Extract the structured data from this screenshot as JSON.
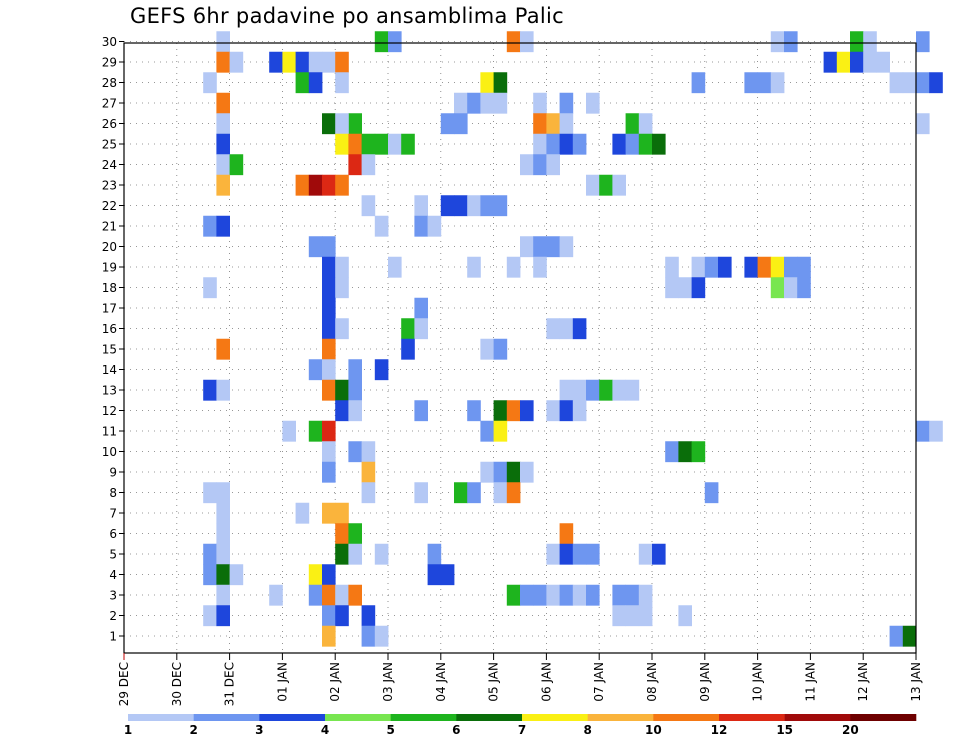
{
  "chart_data": {
    "type": "heatmap",
    "title": "GEFS 6hr padavine po ansamblima Palic",
    "x_tick_labels": [
      "29 DEC",
      "30 DEC",
      "31 DEC",
      "01 JAN",
      "02 JAN",
      "03 JAN",
      "04 JAN",
      "05 JAN",
      "06 JAN",
      "07 JAN",
      "08 JAN",
      "09 JAN",
      "10 JAN",
      "11 JAN",
      "12 JAN",
      "13 JAN"
    ],
    "y_tick_labels": [
      "1",
      "2",
      "3",
      "4",
      "5",
      "6",
      "7",
      "8",
      "9",
      "10",
      "11",
      "12",
      "13",
      "14",
      "15",
      "16",
      "17",
      "18",
      "19",
      "20",
      "21",
      "22",
      "23",
      "24",
      "25",
      "26",
      "27",
      "28",
      "29",
      "30"
    ],
    "x_slots_per_day": 4,
    "colorbar": {
      "labels": [
        "1",
        "2",
        "3",
        "4",
        "5",
        "6",
        "7",
        "8",
        "10",
        "12",
        "15",
        "20"
      ],
      "colors": [
        "#b4c8f5",
        "#6e96f0",
        "#1e46dc",
        "#78e650",
        "#1eb41e",
        "#0a6e0a",
        "#faf014",
        "#fab43c",
        "#f57814",
        "#dc2814",
        "#a00a0a",
        "#6e0000"
      ]
    },
    "cells": [
      [
        30,
        7,
        1
      ],
      [
        30,
        19,
        5
      ],
      [
        30,
        20,
        2
      ],
      [
        30,
        29,
        11
      ],
      [
        30,
        30,
        1
      ],
      [
        30,
        49,
        1
      ],
      [
        30,
        50,
        2
      ],
      [
        30,
        55,
        5
      ],
      [
        30,
        56,
        1
      ],
      [
        30,
        60,
        2
      ],
      [
        29,
        7,
        11
      ],
      [
        29,
        8,
        1
      ],
      [
        29,
        11,
        3
      ],
      [
        29,
        12,
        7
      ],
      [
        29,
        13,
        3
      ],
      [
        29,
        14,
        1
      ],
      [
        29,
        15,
        1
      ],
      [
        29,
        16,
        10
      ],
      [
        29,
        53,
        3
      ],
      [
        29,
        54,
        7
      ],
      [
        29,
        55,
        3
      ],
      [
        29,
        56,
        1
      ],
      [
        29,
        57,
        1
      ],
      [
        28,
        6,
        1
      ],
      [
        28,
        13,
        5
      ],
      [
        28,
        14,
        3
      ],
      [
        28,
        16,
        1
      ],
      [
        28,
        27,
        7
      ],
      [
        28,
        28,
        6
      ],
      [
        28,
        43,
        2
      ],
      [
        28,
        47,
        2
      ],
      [
        28,
        48,
        2
      ],
      [
        28,
        49,
        1
      ],
      [
        28,
        58,
        1
      ],
      [
        28,
        59,
        1
      ],
      [
        28,
        60,
        2
      ],
      [
        28,
        61,
        3
      ],
      [
        27,
        7,
        11
      ],
      [
        27,
        25,
        1
      ],
      [
        27,
        26,
        2
      ],
      [
        27,
        27,
        1
      ],
      [
        27,
        28,
        1
      ],
      [
        27,
        31,
        1
      ],
      [
        27,
        33,
        2
      ],
      [
        27,
        35,
        1
      ],
      [
        26,
        7,
        1
      ],
      [
        26,
        17,
        5
      ],
      [
        26,
        15,
        6
      ],
      [
        26,
        16,
        1
      ],
      [
        26,
        24,
        2
      ],
      [
        26,
        25,
        2
      ],
      [
        26,
        31,
        10
      ],
      [
        26,
        32,
        8
      ],
      [
        26,
        33,
        1
      ],
      [
        26,
        38,
        5
      ],
      [
        26,
        39,
        1
      ],
      [
        26,
        60,
        1
      ],
      [
        25,
        7,
        3
      ],
      [
        25,
        16,
        7
      ],
      [
        25,
        17,
        10
      ],
      [
        25,
        18,
        5
      ],
      [
        25,
        19,
        5
      ],
      [
        25,
        20,
        1
      ],
      [
        25,
        21,
        5
      ],
      [
        25,
        31,
        1
      ],
      [
        25,
        32,
        2
      ],
      [
        25,
        33,
        3
      ],
      [
        25,
        34,
        2
      ],
      [
        25,
        37,
        3
      ],
      [
        25,
        38,
        2
      ],
      [
        25,
        39,
        5
      ],
      [
        25,
        40,
        6
      ],
      [
        24,
        7,
        1
      ],
      [
        24,
        8,
        5
      ],
      [
        24,
        17,
        13
      ],
      [
        24,
        18,
        1
      ],
      [
        24,
        30,
        1
      ],
      [
        24,
        31,
        2
      ],
      [
        24,
        32,
        1
      ],
      [
        23,
        7,
        8
      ],
      [
        23,
        13,
        11
      ],
      [
        23,
        14,
        15
      ],
      [
        23,
        15,
        13
      ],
      [
        23,
        16,
        11
      ],
      [
        23,
        35,
        1
      ],
      [
        23,
        36,
        5
      ],
      [
        23,
        37,
        1
      ],
      [
        22,
        18,
        1
      ],
      [
        22,
        22,
        1
      ],
      [
        22,
        24,
        3
      ],
      [
        22,
        25,
        3
      ],
      [
        22,
        26,
        1
      ],
      [
        22,
        27,
        2
      ],
      [
        22,
        28,
        2
      ],
      [
        21,
        6,
        2
      ],
      [
        21,
        7,
        3
      ],
      [
        21,
        19,
        1
      ],
      [
        21,
        22,
        2
      ],
      [
        21,
        23,
        1
      ],
      [
        20,
        14,
        2
      ],
      [
        20,
        15,
        2
      ],
      [
        20,
        30,
        1
      ],
      [
        20,
        31,
        2
      ],
      [
        20,
        32,
        2
      ],
      [
        20,
        33,
        1
      ],
      [
        19,
        15,
        3
      ],
      [
        19,
        16,
        1
      ],
      [
        19,
        20,
        1
      ],
      [
        19,
        26,
        1
      ],
      [
        19,
        29,
        1
      ],
      [
        19,
        31,
        1
      ],
      [
        19,
        41,
        1
      ],
      [
        19,
        43,
        1
      ],
      [
        19,
        44,
        2
      ],
      [
        19,
        45,
        3
      ],
      [
        19,
        47,
        3
      ],
      [
        19,
        48,
        10
      ],
      [
        19,
        49,
        7
      ],
      [
        19,
        50,
        2
      ],
      [
        19,
        51,
        2
      ],
      [
        18,
        6,
        1
      ],
      [
        18,
        15,
        3
      ],
      [
        18,
        16,
        1
      ],
      [
        18,
        41,
        1
      ],
      [
        18,
        42,
        1
      ],
      [
        18,
        43,
        3
      ],
      [
        18,
        49,
        4
      ],
      [
        18,
        50,
        1
      ],
      [
        18,
        51,
        2
      ],
      [
        17,
        15,
        3
      ],
      [
        17,
        22,
        2
      ],
      [
        16,
        15,
        3
      ],
      [
        16,
        16,
        1
      ],
      [
        16,
        21,
        5
      ],
      [
        16,
        22,
        1
      ],
      [
        16,
        32,
        1
      ],
      [
        16,
        33,
        1
      ],
      [
        16,
        34,
        3
      ],
      [
        15,
        7,
        10
      ],
      [
        15,
        15,
        10
      ],
      [
        15,
        21,
        3
      ],
      [
        15,
        27,
        1
      ],
      [
        15,
        28,
        2
      ],
      [
        14,
        14,
        2
      ],
      [
        14,
        15,
        1
      ],
      [
        14,
        17,
        2
      ],
      [
        14,
        19,
        3
      ],
      [
        13,
        6,
        3
      ],
      [
        13,
        7,
        1
      ],
      [
        13,
        15,
        10
      ],
      [
        13,
        16,
        6
      ],
      [
        13,
        17,
        2
      ],
      [
        13,
        33,
        1
      ],
      [
        13,
        34,
        1
      ],
      [
        13,
        35,
        2
      ],
      [
        13,
        36,
        5
      ],
      [
        13,
        37,
        1
      ],
      [
        13,
        38,
        1
      ],
      [
        12,
        16,
        3
      ],
      [
        12,
        17,
        1
      ],
      [
        12,
        22,
        2
      ],
      [
        12,
        26,
        2
      ],
      [
        12,
        28,
        6
      ],
      [
        12,
        29,
        10
      ],
      [
        12,
        30,
        3
      ],
      [
        12,
        32,
        1
      ],
      [
        12,
        33,
        3
      ],
      [
        12,
        34,
        1
      ],
      [
        11,
        12,
        1
      ],
      [
        11,
        14,
        5
      ],
      [
        11,
        15,
        14
      ],
      [
        11,
        27,
        2
      ],
      [
        11,
        28,
        7
      ],
      [
        11,
        60,
        2
      ],
      [
        11,
        61,
        1
      ],
      [
        10,
        15,
        1
      ],
      [
        10,
        17,
        2
      ],
      [
        10,
        18,
        1
      ],
      [
        10,
        41,
        2
      ],
      [
        10,
        42,
        6
      ],
      [
        10,
        43,
        5
      ],
      [
        9,
        15,
        2
      ],
      [
        9,
        18,
        8
      ],
      [
        9,
        27,
        1
      ],
      [
        9,
        28,
        2
      ],
      [
        9,
        29,
        6
      ],
      [
        9,
        30,
        1
      ],
      [
        8,
        6,
        1
      ],
      [
        8,
        7,
        1
      ],
      [
        8,
        18,
        1
      ],
      [
        8,
        22,
        1
      ],
      [
        8,
        25,
        5
      ],
      [
        8,
        26,
        2
      ],
      [
        8,
        28,
        1
      ],
      [
        8,
        29,
        10
      ],
      [
        8,
        44,
        2
      ],
      [
        7,
        7,
        1
      ],
      [
        7,
        13,
        1
      ],
      [
        7,
        15,
        8
      ],
      [
        7,
        16,
        8
      ],
      [
        6,
        7,
        1
      ],
      [
        6,
        16,
        10
      ],
      [
        6,
        17,
        5
      ],
      [
        6,
        33,
        10
      ],
      [
        5,
        6,
        2
      ],
      [
        5,
        7,
        1
      ],
      [
        5,
        16,
        6
      ],
      [
        5,
        17,
        1
      ],
      [
        5,
        19,
        1
      ],
      [
        5,
        23,
        2
      ],
      [
        5,
        32,
        1
      ],
      [
        5,
        33,
        3
      ],
      [
        5,
        34,
        2
      ],
      [
        5,
        35,
        2
      ],
      [
        5,
        39,
        1
      ],
      [
        5,
        40,
        3
      ],
      [
        4,
        6,
        2
      ],
      [
        4,
        7,
        6
      ],
      [
        4,
        8,
        1
      ],
      [
        4,
        14,
        7
      ],
      [
        4,
        15,
        3
      ],
      [
        4,
        23,
        3
      ],
      [
        4,
        24,
        3
      ],
      [
        3,
        7,
        1
      ],
      [
        3,
        11,
        1
      ],
      [
        3,
        14,
        2
      ],
      [
        3,
        15,
        10
      ],
      [
        3,
        16,
        1
      ],
      [
        3,
        17,
        10
      ],
      [
        3,
        29,
        5
      ],
      [
        3,
        30,
        2
      ],
      [
        3,
        31,
        2
      ],
      [
        3,
        32,
        1
      ],
      [
        3,
        33,
        2
      ],
      [
        3,
        34,
        1
      ],
      [
        3,
        35,
        2
      ],
      [
        3,
        37,
        2
      ],
      [
        3,
        38,
        2
      ],
      [
        3,
        39,
        1
      ],
      [
        2,
        6,
        1
      ],
      [
        2,
        7,
        3
      ],
      [
        2,
        15,
        2
      ],
      [
        2,
        16,
        3
      ],
      [
        2,
        18,
        3
      ],
      [
        2,
        37,
        1
      ],
      [
        2,
        38,
        1
      ],
      [
        2,
        39,
        1
      ],
      [
        2,
        42,
        1
      ],
      [
        1,
        15,
        8
      ],
      [
        1,
        18,
        2
      ],
      [
        1,
        19,
        1
      ],
      [
        1,
        58,
        2
      ],
      [
        1,
        59,
        6
      ]
    ]
  }
}
